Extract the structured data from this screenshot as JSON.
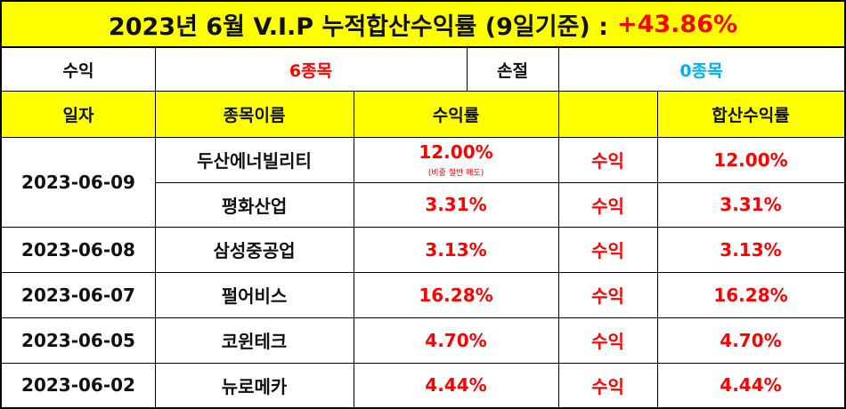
{
  "title": {
    "text": "2023년 6월 V.I.P 누적합산수익률 (9일기준) :",
    "percent": "+43.86%"
  },
  "summary": {
    "profit_label": "수익",
    "profit_value": "6종목",
    "loss_label": "손절",
    "loss_value": "0종목"
  },
  "headers": {
    "date": "일자",
    "stock": "종목이름",
    "return": "수익률",
    "status": "",
    "cumulative": "합산수익률"
  },
  "rows": [
    {
      "stock": "두산에너빌리티",
      "return": "12.00%",
      "note": "(비중 절반 매도)",
      "status": "수익",
      "cumulative": "12.00%"
    },
    {
      "stock": "평화산업",
      "return": "3.31%",
      "status": "수익",
      "cumulative": "3.31%"
    },
    {
      "date": "2023-06-08",
      "stock": "삼성중공업",
      "return": "3.13%",
      "status": "수익",
      "cumulative": "3.13%"
    },
    {
      "date": "2023-06-07",
      "stock": "펄어비스",
      "return": "16.28%",
      "status": "수익",
      "cumulative": "16.28%"
    },
    {
      "date": "2023-06-05",
      "stock": "코윈테크",
      "return": "4.70%",
      "status": "수익",
      "cumulative": "4.70%"
    },
    {
      "date": "2023-06-02",
      "stock": "뉴로메카",
      "return": "4.44%",
      "status": "수익",
      "cumulative": "4.44%"
    }
  ],
  "merged_date": "2023-06-09"
}
